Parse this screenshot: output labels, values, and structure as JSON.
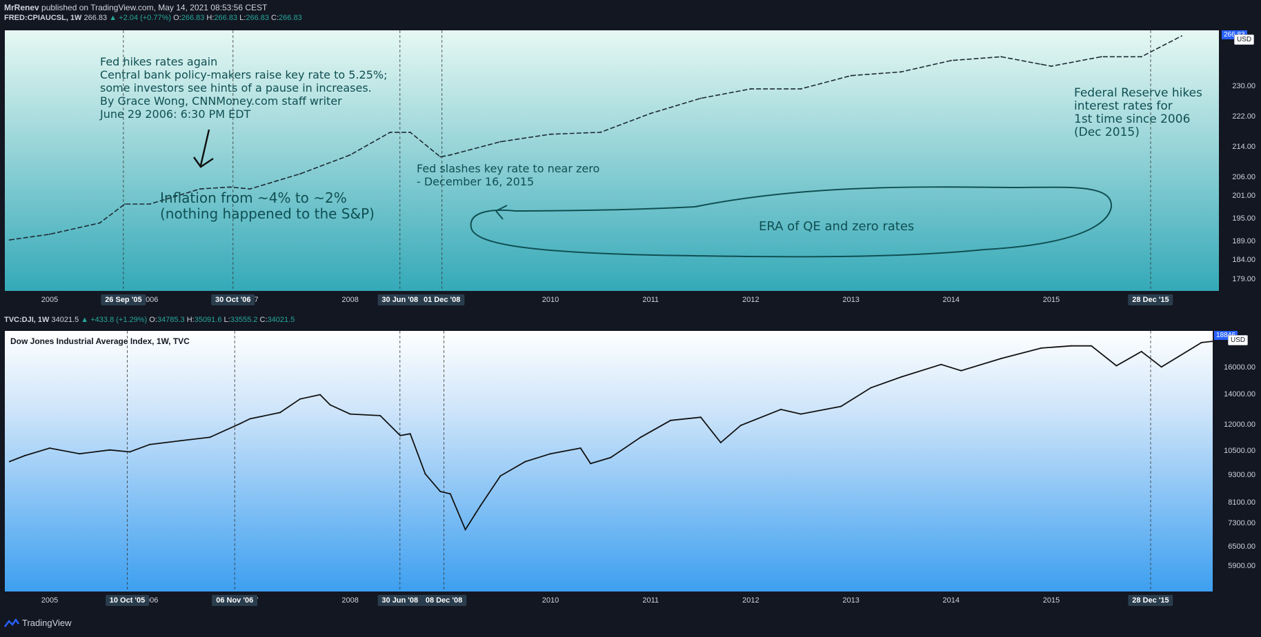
{
  "publish_line": {
    "author": "MrRenev",
    "text": " published on TradingView.com, May 14, 2021 08:53:56 CEST"
  },
  "top": {
    "symbol": "FRED:CPIAUCSL, 1W",
    "last": "266.83",
    "change": "▲ +2.04 (+0.77%)",
    "o_label": "O:",
    "o": "266.83",
    "h_label": "H:",
    "h": "266.83",
    "l_label": "L:",
    "l": "266.83",
    "c_label": "C:",
    "c": "266.83",
    "currency": "USD",
    "price_tag": "266.83"
  },
  "bottom": {
    "symbol": "TVC:DJI, 1W",
    "last": "34021.5",
    "change": "▲ +433.8 (+1.29%)",
    "o_label": "O:",
    "o": "34785.3",
    "h_label": "H:",
    "h": "35091.6",
    "l_label": "L:",
    "l": "33555.2",
    "c_label": "C:",
    "c": "34021.5",
    "title": "Dow Jones Industrial Average Index, 1W, TVC",
    "currency": "USD",
    "price_tag": "18846"
  },
  "annotations": {
    "fed_hikes": "Fed hikes rates again\nCentral bank policy-makers raise key rate to 5.25%;\nsome investors see hints of a pause in increases.\nBy Grace Wong, CNNMoney.com staff writer\nJune 29 2006: 6:30 PM EDT",
    "inflation": "Inflation from ~4% to ~2%\n(nothing happened to the S&P)",
    "slashes": "Fed slashes key rate to near zero\n- December 16, 2015",
    "era": "ERA of QE and zero rates",
    "reserve": "Federal Reserve hikes\ninterest rates for\n1st time since 2006\n(Dec 2015)"
  },
  "footer": {
    "brand": "TradingView"
  },
  "colors": {
    "bg": "#131722",
    "accent": "#26a69a",
    "anno": "#0f4f52",
    "badge": "#2a3d4d"
  },
  "chart_data": [
    {
      "type": "line",
      "series": [
        {
          "name": "FRED:CPIAUCSL, 1W",
          "x": [
            2004.6,
            2005.0,
            2005.5,
            2005.75,
            2006.0,
            2006.5,
            2006.8,
            2007.0,
            2007.5,
            2008.0,
            2008.4,
            2008.6,
            2008.9,
            2009.0,
            2009.5,
            2010.0,
            2010.5,
            2011.0,
            2011.5,
            2012.0,
            2012.5,
            2013.0,
            2013.5,
            2014.0,
            2014.5,
            2014.9,
            2015.0,
            2015.5,
            2015.9,
            2016.3
          ],
          "values": [
            189.5,
            191,
            194,
            199,
            199,
            203,
            203.5,
            203,
            207,
            212,
            218,
            218,
            211.5,
            212,
            215.5,
            217.5,
            218,
            223,
            227,
            229.5,
            229.5,
            233,
            234,
            237,
            238,
            236,
            235.5,
            238,
            238,
            243.5
          ]
        }
      ],
      "ylim": [
        176,
        245
      ],
      "yticks": [
        "230.00",
        "222.00",
        "214.00",
        "206.00",
        "201.00",
        "195.00",
        "189.00",
        "184.00",
        "179.00"
      ],
      "xticks": [
        "2005",
        "2006",
        "2007",
        "2008",
        "2009",
        "2010",
        "2011",
        "2012",
        "2013",
        "2014",
        "2015"
      ],
      "markers": [
        "26 Sep '05",
        "30 Oct '06",
        "30 Jun '08",
        "01 Dec '08",
        "28 Dec '15"
      ]
    },
    {
      "type": "line",
      "series": [
        {
          "name": "Dow Jones Industrial Average Index, 1W, TVC",
          "x": [
            2004.6,
            2004.75,
            2005.0,
            2005.3,
            2005.6,
            2005.8,
            2006.0,
            2006.3,
            2006.6,
            2006.9,
            2007.0,
            2007.3,
            2007.5,
            2007.7,
            2007.8,
            2008.0,
            2008.3,
            2008.5,
            2008.6,
            2008.75,
            2008.9,
            2009.0,
            2009.15,
            2009.3,
            2009.5,
            2009.75,
            2010.0,
            2010.3,
            2010.4,
            2010.6,
            2010.9,
            2011.2,
            2011.5,
            2011.7,
            2011.9,
            2012.3,
            2012.5,
            2012.9,
            2013.2,
            2013.5,
            2013.9,
            2014.1,
            2014.5,
            2014.9,
            2015.2,
            2015.4,
            2015.65,
            2015.9,
            2016.1,
            2016.5,
            2016.8,
            2016.95
          ],
          "values": [
            10000,
            10300,
            10700,
            10400,
            10600,
            10500,
            10900,
            11100,
            11300,
            12100,
            12400,
            12800,
            13700,
            14000,
            13300,
            12700,
            12600,
            11400,
            11500,
            9400,
            8600,
            8500,
            7100,
            8000,
            9300,
            10000,
            10400,
            10700,
            9900,
            10200,
            11300,
            12300,
            12500,
            11000,
            12000,
            13000,
            12700,
            13200,
            14500,
            15300,
            16300,
            15800,
            16800,
            17700,
            17900,
            17900,
            16200,
            17400,
            16100,
            18200,
            18500,
            18846
          ]
        }
      ],
      "ylim": [
        5200,
        19300
      ],
      "yticks": [
        "16000.00",
        "14000.00",
        "12000.00",
        "10500.00",
        "9300.00",
        "8100.00",
        "7300.00",
        "6500.00",
        "5900.00"
      ],
      "xticks": [
        "2005",
        "2006",
        "2007",
        "2008",
        "2009",
        "2010",
        "2011",
        "2012",
        "2013",
        "2014",
        "2015"
      ],
      "markers": [
        "10 Oct '05",
        "06 Nov '06",
        "30 Jun '08",
        "08 Dec '08",
        "28 Dec '15"
      ]
    }
  ]
}
